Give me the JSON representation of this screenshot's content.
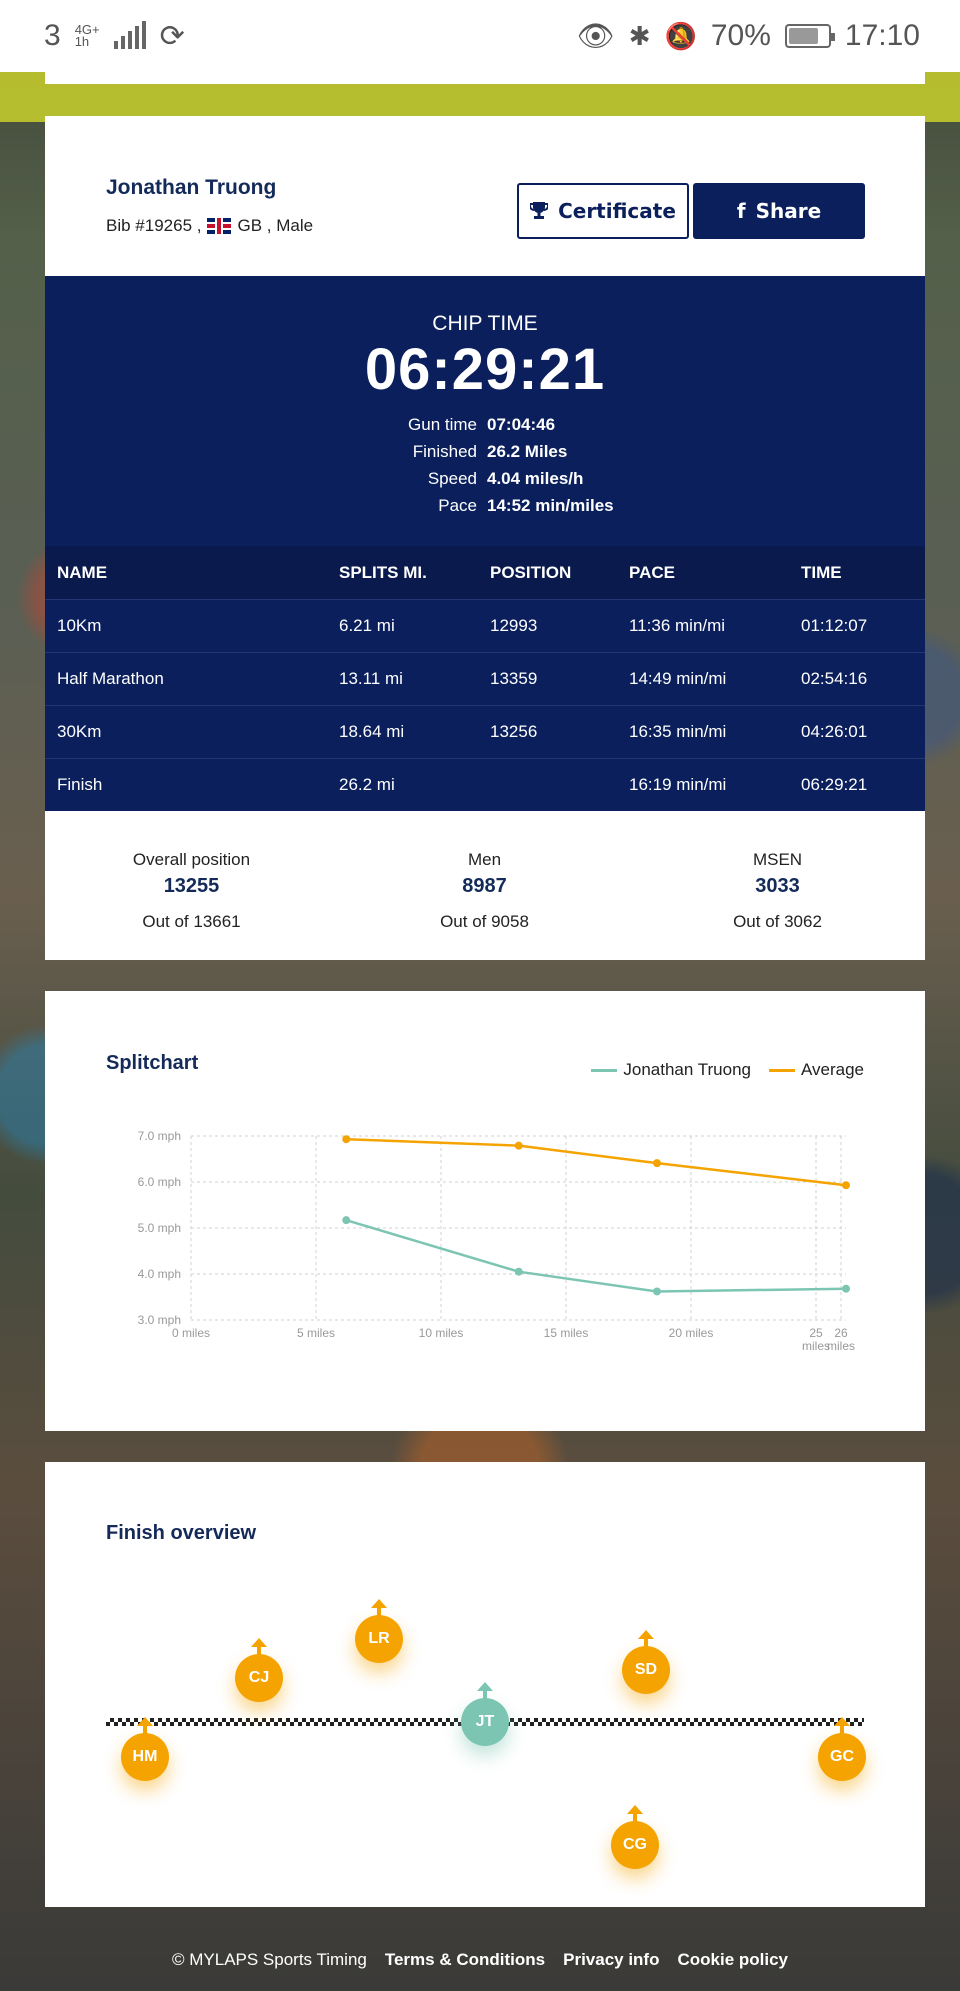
{
  "status_bar": {
    "carrier": "3",
    "network": "4G+",
    "network_sub": "1h",
    "battery": "70%",
    "time": "17:10"
  },
  "runner": {
    "name": "Jonathan Truong",
    "bib": "Bib #19265 ,",
    "country": "GB , Male"
  },
  "buttons": {
    "certificate": "Certificate",
    "share": "Share"
  },
  "chip": {
    "label": "CHIP TIME",
    "time": "06:29:21",
    "details": [
      {
        "key": "Gun time",
        "value": "07:04:46"
      },
      {
        "key": "Finished",
        "value": "26.2 Miles"
      },
      {
        "key": "Speed",
        "value": "4.04 miles/h"
      },
      {
        "key": "Pace",
        "value": "14:52 min/miles"
      }
    ]
  },
  "splits": {
    "headers": [
      "NAME",
      "SPLITS MI.",
      "POSITION",
      "PACE",
      "TIME"
    ],
    "rows": [
      [
        "10Km",
        "6.21 mi",
        "12993",
        "11:36 min/mi",
        "01:12:07"
      ],
      [
        "Half Marathon",
        "13.11 mi",
        "13359",
        "14:49 min/mi",
        "02:54:16"
      ],
      [
        "30Km",
        "18.64 mi",
        "13256",
        "16:35 min/mi",
        "04:26:01"
      ],
      [
        "Finish",
        "26.2 mi",
        "",
        "16:19 min/mi",
        "06:29:21"
      ]
    ]
  },
  "positions": [
    {
      "label": "Overall position",
      "value": "13255",
      "out": "Out of 13661"
    },
    {
      "label": "Men",
      "value": "8987",
      "out": "Out of 9058"
    },
    {
      "label": "MSEN",
      "value": "3033",
      "out": "Out of 3062"
    }
  ],
  "splitchart_title": "Splitchart",
  "chart_data": {
    "type": "line",
    "series": [
      {
        "name": "Jonathan Truong",
        "color": "#7cc5b2",
        "x": [
          6.21,
          13.11,
          18.64,
          26.2
        ],
        "values": [
          5.17,
          4.05,
          3.62,
          3.68
        ]
      },
      {
        "name": "Average",
        "color": "#f5a300",
        "x": [
          6.21,
          13.11,
          18.64,
          26.2
        ],
        "values": [
          6.93,
          6.79,
          6.41,
          5.93
        ]
      }
    ],
    "x_ticks": [
      0,
      5,
      10,
      15,
      20,
      25,
      26
    ],
    "x_tick_labels": [
      "0 miles",
      "5 miles",
      "10 miles",
      "15 miles",
      "20 miles",
      "25",
      "26"
    ],
    "x_tail_labels": [
      "miles",
      "miles"
    ],
    "y_ticks": [
      3,
      4,
      5,
      6,
      7
    ],
    "y_tick_labels": [
      "3.0 mph",
      "4.0 mph",
      "5.0 mph",
      "6.0 mph",
      "7.0 mph"
    ],
    "xlim": [
      0,
      26.2
    ],
    "ylim": [
      3,
      7
    ],
    "grid": true,
    "legend": "top-right"
  },
  "finish_overview": {
    "title": "Finish overview",
    "markers": [
      {
        "initials": "HM",
        "kind": "orange"
      },
      {
        "initials": "CJ",
        "kind": "orange"
      },
      {
        "initials": "LR",
        "kind": "orange"
      },
      {
        "initials": "JT",
        "kind": "teal"
      },
      {
        "initials": "SD",
        "kind": "orange"
      },
      {
        "initials": "CG",
        "kind": "orange"
      },
      {
        "initials": "GC",
        "kind": "orange"
      }
    ]
  },
  "footer": {
    "copyright": "© MYLAPS Sports Timing",
    "terms": "Terms & Conditions",
    "privacy": "Privacy info",
    "cookie": "Cookie policy"
  }
}
